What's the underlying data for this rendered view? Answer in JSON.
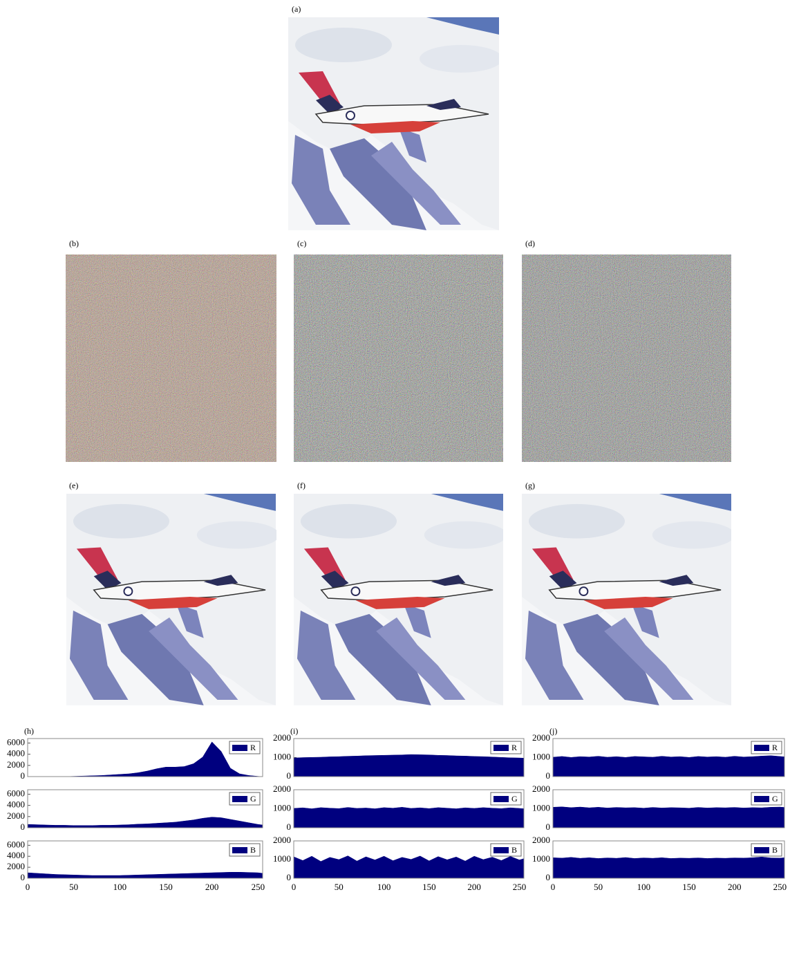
{
  "panels": [
    "(a)",
    "(b)",
    "(c)",
    "(d)",
    "(e)",
    "(f)",
    "(g)"
  ],
  "chart_data": [
    {
      "type": "area",
      "title": "(h)",
      "xlim": [
        0,
        255
      ],
      "ylim": [
        0,
        6800
      ],
      "yticks": [
        0,
        2000,
        4000,
        6000
      ],
      "legend": "upper right",
      "x": [
        0,
        10,
        20,
        30,
        40,
        50,
        60,
        70,
        80,
        90,
        100,
        110,
        120,
        130,
        140,
        150,
        160,
        170,
        180,
        190,
        200,
        210,
        220,
        230,
        240,
        250,
        255
      ],
      "series": [
        {
          "name": "R",
          "color": "#00007f",
          "values": [
            0,
            0,
            0,
            0,
            0,
            50,
            100,
            150,
            200,
            300,
            400,
            500,
            700,
            1000,
            1400,
            1700,
            1700,
            1800,
            2300,
            3500,
            6200,
            4500,
            1500,
            500,
            200,
            50,
            0
          ]
        }
      ]
    },
    {
      "type": "area",
      "xlim": [
        0,
        255
      ],
      "ylim": [
        0,
        6800
      ],
      "yticks": [
        0,
        2000,
        4000,
        6000
      ],
      "legend": "upper right",
      "x": [
        0,
        10,
        20,
        30,
        40,
        50,
        60,
        70,
        80,
        90,
        100,
        110,
        120,
        130,
        140,
        150,
        160,
        170,
        180,
        190,
        200,
        210,
        220,
        230,
        240,
        250,
        255
      ],
      "series": [
        {
          "name": "G",
          "color": "#00007f",
          "values": [
            600,
            550,
            500,
            450,
            450,
            400,
            400,
            400,
            450,
            450,
            500,
            550,
            650,
            700,
            800,
            900,
            1000,
            1200,
            1400,
            1700,
            1900,
            1800,
            1500,
            1200,
            900,
            600,
            500
          ]
        }
      ]
    },
    {
      "type": "area",
      "xlim": [
        0,
        255
      ],
      "ylim": [
        0,
        6800
      ],
      "yticks": [
        0,
        2000,
        4000,
        6000
      ],
      "legend": "upper right",
      "xticks": [
        0,
        50,
        100,
        150,
        200,
        250
      ],
      "x": [
        0,
        10,
        20,
        30,
        40,
        50,
        60,
        70,
        80,
        90,
        100,
        110,
        120,
        130,
        140,
        150,
        160,
        170,
        180,
        190,
        200,
        210,
        220,
        230,
        240,
        250,
        255
      ],
      "series": [
        {
          "name": "B",
          "color": "#00007f",
          "values": [
            1000,
            900,
            800,
            700,
            650,
            600,
            550,
            500,
            500,
            500,
            500,
            550,
            600,
            650,
            700,
            750,
            800,
            850,
            900,
            950,
            1000,
            1050,
            1100,
            1100,
            1050,
            1000,
            900
          ]
        }
      ]
    },
    {
      "type": "area",
      "title": "(i)",
      "xlim": [
        0,
        255
      ],
      "ylim": [
        0,
        2000
      ],
      "yticks": [
        0,
        1000,
        2000
      ],
      "legend": "upper right",
      "x": [
        0,
        10,
        20,
        30,
        40,
        50,
        60,
        70,
        80,
        90,
        100,
        110,
        120,
        130,
        140,
        150,
        160,
        170,
        180,
        190,
        200,
        210,
        220,
        230,
        240,
        250,
        255
      ],
      "series": [
        {
          "name": "R",
          "color": "#00007f",
          "values": [
            980,
            1000,
            1010,
            1020,
            1040,
            1050,
            1070,
            1080,
            1100,
            1110,
            1120,
            1130,
            1140,
            1160,
            1150,
            1140,
            1120,
            1110,
            1090,
            1080,
            1060,
            1050,
            1030,
            1010,
            990,
            980,
            970
          ]
        }
      ]
    },
    {
      "type": "area",
      "xlim": [
        0,
        255
      ],
      "ylim": [
        0,
        2000
      ],
      "yticks": [
        0,
        1000,
        2000
      ],
      "legend": "upper right",
      "x": [
        0,
        10,
        20,
        30,
        40,
        50,
        60,
        70,
        80,
        90,
        100,
        110,
        120,
        130,
        140,
        150,
        160,
        170,
        180,
        190,
        200,
        210,
        220,
        230,
        240,
        250,
        255
      ],
      "series": [
        {
          "name": "G",
          "color": "#00007f",
          "values": [
            1020,
            1050,
            1000,
            1060,
            1030,
            1010,
            1070,
            1020,
            1040,
            1000,
            1060,
            1030,
            1080,
            1020,
            1050,
            1010,
            1060,
            1030,
            1000,
            1050,
            1020,
            1060,
            1030,
            1010,
            1050,
            1020,
            1000
          ]
        }
      ]
    },
    {
      "type": "area",
      "xlim": [
        0,
        255
      ],
      "ylim": [
        0,
        2000
      ],
      "yticks": [
        0,
        1000,
        2000
      ],
      "legend": "upper right",
      "xticks": [
        0,
        50,
        100,
        150,
        200,
        250
      ],
      "x": [
        0,
        10,
        20,
        30,
        40,
        50,
        60,
        70,
        80,
        90,
        100,
        110,
        120,
        130,
        140,
        150,
        160,
        170,
        180,
        190,
        200,
        210,
        220,
        230,
        240,
        250,
        255
      ],
      "series": [
        {
          "name": "B",
          "color": "#00007f",
          "values": [
            1150,
            950,
            1180,
            900,
            1120,
            1000,
            1200,
            920,
            1150,
            980,
            1180,
            940,
            1120,
            1010,
            1190,
            930,
            1160,
            990,
            1140,
            920,
            1180,
            1000,
            1130,
            950,
            1170,
            980,
            1050
          ]
        }
      ]
    },
    {
      "type": "area",
      "title": "(j)",
      "xlim": [
        0,
        255
      ],
      "ylim": [
        0,
        2000
      ],
      "yticks": [
        0,
        1000,
        2000
      ],
      "legend": "upper right",
      "x": [
        0,
        10,
        20,
        30,
        40,
        50,
        60,
        70,
        80,
        90,
        100,
        110,
        120,
        130,
        140,
        150,
        160,
        170,
        180,
        190,
        200,
        210,
        220,
        230,
        240,
        250,
        255
      ],
      "series": [
        {
          "name": "R",
          "color": "#00007f",
          "values": [
            1020,
            1060,
            1010,
            1050,
            1030,
            1070,
            1020,
            1050,
            1010,
            1060,
            1040,
            1020,
            1070,
            1030,
            1050,
            1010,
            1060,
            1030,
            1050,
            1020,
            1070,
            1030,
            1050,
            1080,
            1100,
            1060,
            1040
          ]
        }
      ]
    },
    {
      "type": "area",
      "xlim": [
        0,
        255
      ],
      "ylim": [
        0,
        2000
      ],
      "yticks": [
        0,
        1000,
        2000
      ],
      "legend": "upper right",
      "x": [
        0,
        10,
        20,
        30,
        40,
        50,
        60,
        70,
        80,
        90,
        100,
        110,
        120,
        130,
        140,
        150,
        160,
        170,
        180,
        190,
        200,
        210,
        220,
        230,
        240,
        250,
        255
      ],
      "series": [
        {
          "name": "G",
          "color": "#00007f",
          "values": [
            1080,
            1100,
            1060,
            1090,
            1050,
            1080,
            1040,
            1070,
            1050,
            1060,
            1030,
            1070,
            1040,
            1060,
            1050,
            1030,
            1070,
            1040,
            1060,
            1050,
            1070,
            1040,
            1060,
            1050,
            1080,
            1090,
            1070
          ]
        }
      ]
    },
    {
      "type": "area",
      "xlim": [
        0,
        255
      ],
      "ylim": [
        0,
        2000
      ],
      "yticks": [
        0,
        1000,
        2000
      ],
      "legend": "upper right",
      "xticks": [
        0,
        50,
        100,
        150,
        200,
        250
      ],
      "x": [
        0,
        10,
        20,
        30,
        40,
        50,
        60,
        70,
        80,
        90,
        100,
        110,
        120,
        130,
        140,
        150,
        160,
        170,
        180,
        190,
        200,
        210,
        220,
        230,
        240,
        250,
        255
      ],
      "series": [
        {
          "name": "B",
          "color": "#00007f",
          "values": [
            1100,
            1080,
            1120,
            1070,
            1100,
            1060,
            1090,
            1070,
            1110,
            1060,
            1090,
            1070,
            1100,
            1060,
            1080,
            1070,
            1090,
            1060,
            1080,
            1070,
            1090,
            1080,
            1100,
            1140,
            1090,
            1080,
            1100
          ]
        }
      ]
    }
  ]
}
